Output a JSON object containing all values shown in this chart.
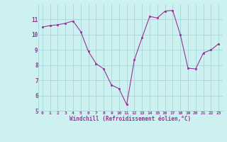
{
  "x": [
    0,
    1,
    2,
    3,
    4,
    5,
    6,
    7,
    8,
    9,
    10,
    11,
    12,
    13,
    14,
    15,
    16,
    17,
    18,
    19,
    20,
    21,
    22,
    23
  ],
  "y": [
    10.5,
    10.6,
    10.65,
    10.75,
    10.9,
    10.2,
    8.9,
    8.1,
    7.75,
    6.7,
    6.45,
    5.4,
    8.35,
    9.8,
    11.2,
    11.1,
    11.55,
    11.6,
    10.0,
    7.8,
    7.75,
    8.8,
    9.0,
    9.4
  ],
  "line_color": "#993399",
  "marker_color": "#993399",
  "bg_color": "#cdf0f0",
  "grid_color": "#aadada",
  "xlabel": "Windchill (Refroidissement éolien,°C)",
  "tick_color": "#993399",
  "xlim": [
    -0.5,
    23.5
  ],
  "ylim": [
    5,
    12
  ],
  "yticks": [
    5,
    6,
    7,
    8,
    9,
    10,
    11
  ],
  "xticks": [
    0,
    1,
    2,
    3,
    4,
    5,
    6,
    7,
    8,
    9,
    10,
    11,
    12,
    13,
    14,
    15,
    16,
    17,
    18,
    19,
    20,
    21,
    22,
    23
  ],
  "xtick_labels": [
    "0",
    "1",
    "2",
    "3",
    "4",
    "5",
    "6",
    "7",
    "8",
    "9",
    "10",
    "11",
    "12",
    "13",
    "14",
    "15",
    "16",
    "17",
    "18",
    "19",
    "20",
    "21",
    "22",
    "23"
  ]
}
